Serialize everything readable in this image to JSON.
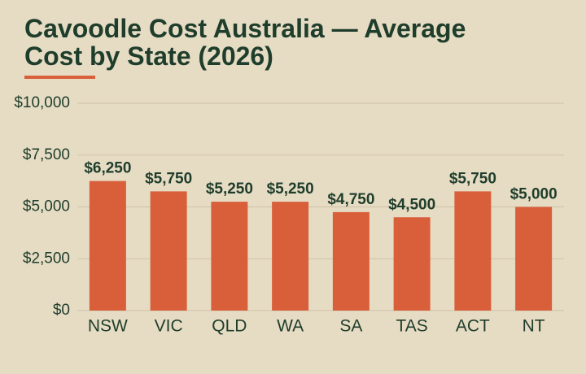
{
  "chart_data": {
    "type": "bar",
    "title": "Cavoodle Cost Australia — Average Cost by State (2026)",
    "categories": [
      "NSW",
      "VIC",
      "QLD",
      "WA",
      "SA",
      "TAS",
      "ACT",
      "NT"
    ],
    "values": [
      6250,
      5750,
      5250,
      5250,
      4750,
      4500,
      5750,
      5000
    ],
    "value_labels": [
      "$6,250",
      "$5,750",
      "$5,250",
      "$5,250",
      "$4,750",
      "$4,500",
      "$5,750",
      "$5,000"
    ],
    "color": "#d95f3b",
    "ylim": [
      0,
      10000
    ],
    "yticks": [
      {
        "value": 0,
        "label": "$0"
      },
      {
        "value": 2500,
        "label": "$2,500"
      },
      {
        "value": 5000,
        "label": "$5,000"
      },
      {
        "value": 7500,
        "label": "$7,500"
      },
      {
        "value": 10000,
        "label": "$10,000"
      }
    ],
    "grid": true
  }
}
